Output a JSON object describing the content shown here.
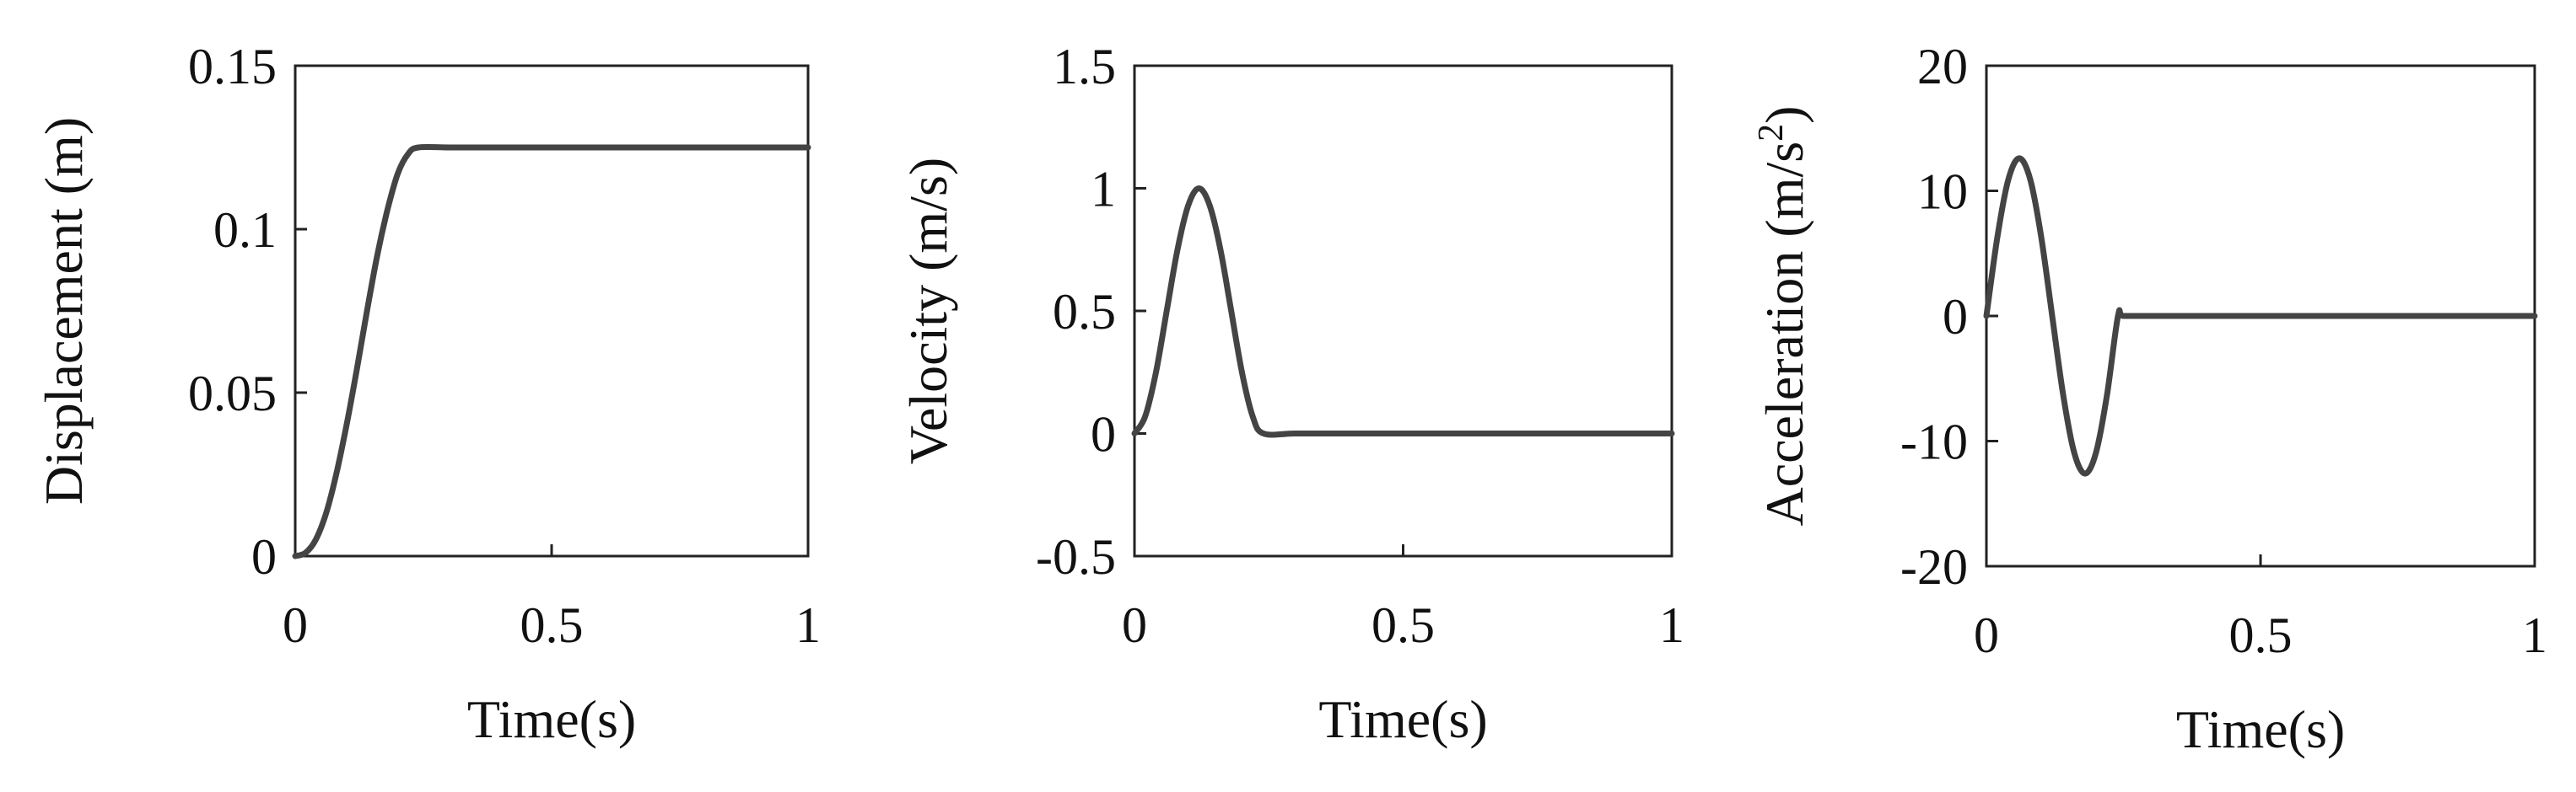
{
  "chart_data": [
    {
      "type": "line",
      "xlabel": "Time(s)",
      "ylabel": "Displacement (m)",
      "xlim": [
        0,
        1
      ],
      "ylim": [
        0,
        0.15
      ],
      "xticks": [
        0,
        0.5,
        1
      ],
      "xtick_labels": [
        "0",
        "0.5",
        "1"
      ],
      "yticks": [
        0,
        0.05,
        0.1,
        0.15
      ],
      "ytick_labels": [
        "0",
        "0.05",
        "0.1",
        "0.15"
      ],
      "grid": false,
      "x": [
        0,
        0.02,
        0.04,
        0.06,
        0.08,
        0.1,
        0.12,
        0.14,
        0.16,
        0.18,
        0.2,
        0.22,
        0.24,
        0.3,
        0.4,
        0.5,
        0.6,
        0.7,
        0.8,
        0.9,
        1.0
      ],
      "values": [
        0,
        0.001,
        0.005,
        0.013,
        0.025,
        0.04,
        0.057,
        0.075,
        0.092,
        0.106,
        0.117,
        0.123,
        0.125,
        0.125,
        0.125,
        0.125,
        0.125,
        0.125,
        0.125,
        0.125,
        0.125
      ]
    },
    {
      "type": "line",
      "xlabel": "Time(s)",
      "ylabel": "Velocity (m/s)",
      "xlim": [
        0,
        1
      ],
      "ylim": [
        -0.5,
        1.5
      ],
      "xticks": [
        0,
        0.5,
        1
      ],
      "xtick_labels": [
        "0",
        "0.5",
        "1"
      ],
      "yticks": [
        -0.5,
        0,
        0.5,
        1,
        1.5
      ],
      "ytick_labels": [
        "-0.5",
        "0",
        "0.5",
        "1",
        "1.5"
      ],
      "grid": false,
      "x": [
        0,
        0.02,
        0.04,
        0.06,
        0.08,
        0.1,
        0.12,
        0.14,
        0.16,
        0.18,
        0.2,
        0.22,
        0.24,
        0.3,
        0.4,
        0.5,
        0.6,
        0.7,
        0.8,
        0.9,
        1.0
      ],
      "values": [
        0,
        0.07,
        0.25,
        0.5,
        0.75,
        0.93,
        1.0,
        0.93,
        0.75,
        0.5,
        0.25,
        0.07,
        0,
        0,
        0,
        0,
        0,
        0,
        0,
        0,
        0
      ]
    },
    {
      "type": "line",
      "xlabel": "Time(s)",
      "ylabel": "Acceleration (m/s",
      "ylabel_sup": "2",
      "ylabel_end": ")",
      "xlim": [
        0,
        1
      ],
      "ylim": [
        -20,
        20
      ],
      "xticks": [
        0,
        0.5,
        1
      ],
      "xtick_labels": [
        "0",
        "0.5",
        "1"
      ],
      "yticks": [
        -20,
        -10,
        0,
        10,
        20
      ],
      "ytick_labels": [
        "-20",
        "-10",
        "0",
        "10",
        "20"
      ],
      "grid": false,
      "x": [
        0,
        0.02,
        0.04,
        0.06,
        0.08,
        0.1,
        0.12,
        0.14,
        0.16,
        0.18,
        0.2,
        0.22,
        0.24,
        0.25,
        0.3,
        0.4,
        0.5,
        0.6,
        0.7,
        0.8,
        0.9,
        1.0
      ],
      "values": [
        0,
        6.3,
        10.9,
        12.6,
        10.9,
        6.3,
        0,
        -6.3,
        -10.9,
        -12.6,
        -10.9,
        -6.3,
        0,
        0,
        0,
        0,
        0,
        0,
        0,
        0,
        0,
        0
      ]
    }
  ]
}
